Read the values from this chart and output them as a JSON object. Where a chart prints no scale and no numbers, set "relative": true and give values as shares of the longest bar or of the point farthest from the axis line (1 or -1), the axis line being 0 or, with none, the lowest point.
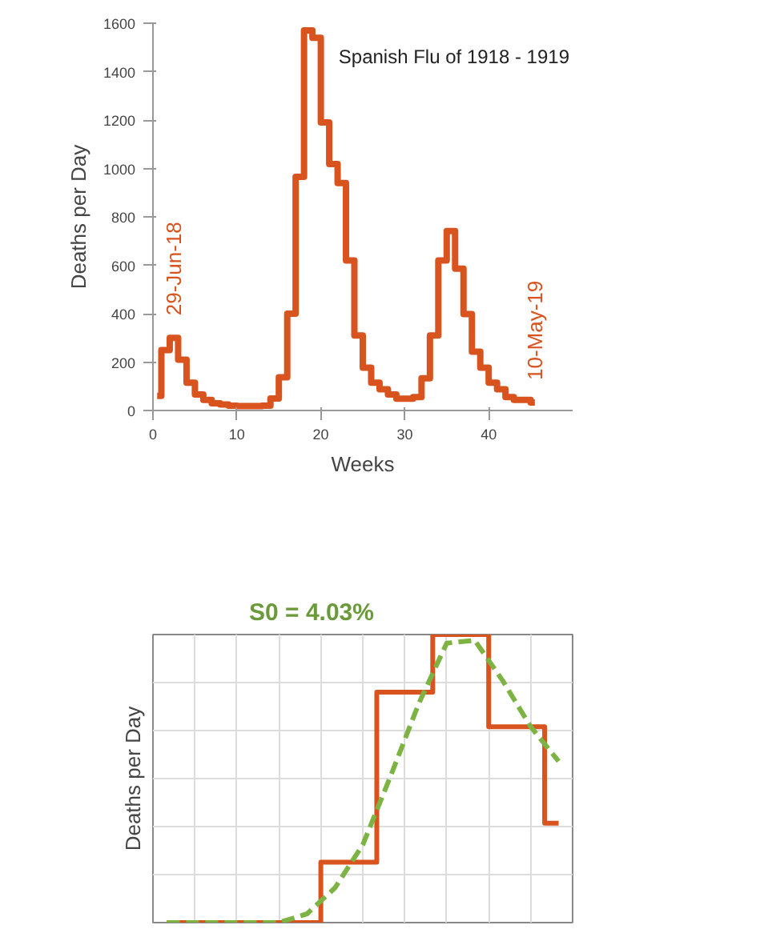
{
  "chart_data": [
    {
      "type": "step",
      "title": "Spanish Flu of 1918 - 1919",
      "xlabel": "Weeks",
      "ylabel": "Deaths per Day",
      "x": [
        0.5,
        1.5,
        2.5,
        3.5,
        4.5,
        5.5,
        6.5,
        7.5,
        8.5,
        9.5,
        10.5,
        11.5,
        12.5,
        13.5,
        14.5,
        15.5,
        16.5,
        17.5,
        18.5,
        19.5,
        20.5,
        21.5,
        22.5,
        23.5,
        24.5,
        25.5,
        26.5,
        27.5,
        28.5,
        29.5,
        30.5,
        31.5,
        32.5,
        33.5,
        34.5,
        35.5,
        36.5,
        37.5,
        38.5,
        39.5,
        40.5,
        41.5,
        42.5,
        43.5,
        44.5,
        45.5
      ],
      "series": [
        {
          "color": "#d9531e",
          "values": [
            60,
            250,
            300,
            210,
            115,
            66,
            44,
            30,
            25,
            20,
            18,
            18,
            18,
            20,
            50,
            137,
            400,
            965,
            1570,
            1540,
            1190,
            1018,
            940,
            620,
            310,
            177,
            115,
            88,
            66,
            49,
            49,
            55,
            133,
            310,
            620,
            741,
            586,
            398,
            243,
            177,
            115,
            88,
            55,
            44,
            44,
            33
          ]
        }
      ],
      "xlim": [
        0,
        50
      ],
      "xticks": [
        0,
        10,
        20,
        30,
        40
      ],
      "ylim": [
        0,
        1600
      ],
      "yticks": [
        0,
        200,
        400,
        600,
        800,
        1000,
        1200,
        1400,
        1600
      ],
      "annotations": [
        {
          "text": "29-Jun-18",
          "x": 2.5,
          "y": 300
        },
        {
          "text": "10-May-19",
          "x": 45.5,
          "y": 33
        }
      ],
      "grid": false
    },
    {
      "type": "step",
      "title": "S0 = 4.03%",
      "ylabel": "Deaths per Day",
      "relative": true,
      "grid": true,
      "categories": [
        null,
        null,
        null,
        null,
        null,
        null,
        null,
        null,
        null,
        null,
        null,
        null,
        null,
        null,
        null
      ],
      "series": [
        {
          "color": "#d9531e",
          "values": [
            0,
            0,
            0,
            0,
            0,
            0,
            0.21,
            0.21,
            0.8,
            0.8,
            1,
            1,
            0.68,
            0.68,
            0.345
          ]
        },
        {
          "type": "line",
          "line_style": "dashed",
          "color": "#7cb342",
          "values": [
            0,
            0,
            0,
            0,
            0,
            0.03,
            0.12,
            0.27,
            0.51,
            0.76,
            0.97,
            0.98,
            0.84,
            0.68,
            0.56
          ]
        }
      ]
    }
  ]
}
